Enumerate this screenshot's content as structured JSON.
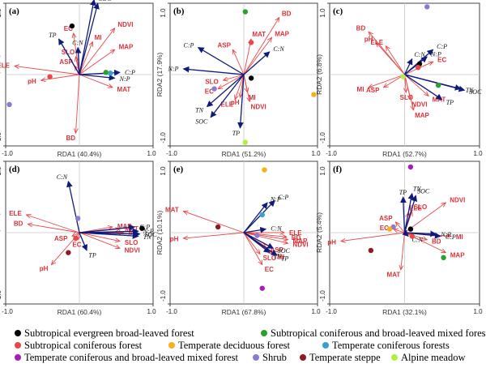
{
  "colors": {
    "env_arrow": "#e8484a",
    "env_text": "#d9323a",
    "sp_arrow": "#101a7a",
    "panel_border": "#444444",
    "axis_label": "#333333"
  },
  "legend": [
    {
      "label": "Subtropical  evergreen  broad-leaved  forest",
      "color": "#000000"
    },
    {
      "label": "Subtropical coniferous and broad-leaved mixed forest",
      "color": "#2ca02c"
    },
    {
      "label": "Subtropical coniferous forest",
      "color": "#e8484a"
    },
    {
      "label": "Temperate deciduous forest",
      "color": "#f5b01c"
    },
    {
      "label": "Temperate coniferous forests",
      "color": "#3a9fcf"
    },
    {
      "label": "Temperate coniferous and broad-leaved mixed forest",
      "color": "#a41fb5"
    },
    {
      "label": "Shrub",
      "color": "#8a7bd0"
    },
    {
      "label": "Temperate steppe",
      "color": "#8b1a25"
    },
    {
      "label": "Alpine meadow",
      "color": "#b2ef3f"
    }
  ],
  "chart_data": [
    {
      "type": "scatter",
      "panel": "(a)",
      "xlabel": "RDA1 (40.4%)",
      "ylabel": "RDA2 (1.9%)",
      "xlim": [
        -1.0,
        1.0
      ],
      "ylim": [
        -1.0,
        1.0
      ],
      "x_ticks": [
        "-1.0",
        "1.0"
      ],
      "y_ticks": [
        "-1.0",
        "1.0"
      ],
      "env_vectors": [
        {
          "label": "EC",
          "x": -0.08,
          "y": 0.58
        },
        {
          "label": "SLO",
          "x": -0.05,
          "y": 0.25
        },
        {
          "label": "ASP",
          "x": -0.06,
          "y": 0.12
        },
        {
          "label": "MI",
          "x": 0.18,
          "y": 0.46
        },
        {
          "label": "NDVI",
          "x": 0.48,
          "y": 0.65
        },
        {
          "label": "MAP",
          "x": 0.48,
          "y": 0.35
        },
        {
          "label": "ELE",
          "x": -0.88,
          "y": 0.12
        },
        {
          "label": "pH",
          "x": -0.52,
          "y": -0.08
        },
        {
          "label": "MAT",
          "x": 0.45,
          "y": -0.18
        },
        {
          "label": "BD",
          "x": -0.05,
          "y": -0.82
        }
      ],
      "species_vectors": [
        {
          "label": "TP",
          "x": -0.28,
          "y": 0.5
        },
        {
          "label": "C:N",
          "x": -0.02,
          "y": 0.38
        },
        {
          "label": "N:P",
          "x": 0.48,
          "y": -0.05
        },
        {
          "label": "C:P",
          "x": 0.55,
          "y": 0.03
        },
        {
          "label": "TN",
          "x": 0.2,
          "y": 1.05
        },
        {
          "label": "SOC",
          "x": 0.25,
          "y": 1.0
        }
      ],
      "sites": [
        {
          "group": "Subtropical  evergreen  broad-leaved  forest",
          "x": -0.1,
          "y": 0.68
        },
        {
          "group": "Subtropical coniferous forest",
          "x": -0.4,
          "y": -0.03
        },
        {
          "group": "Subtropical coniferous and broad-leaved mixed forest",
          "x": 0.36,
          "y": 0.03
        },
        {
          "group": "Temperate coniferous forests",
          "x": 0.42,
          "y": 0.02
        },
        {
          "group": "Shrub",
          "x": -0.95,
          "y": -0.42
        }
      ]
    },
    {
      "type": "scatter",
      "panel": "(b)",
      "xlabel": "RDA1 (51.2%)",
      "ylabel": "RDA2 (17.9%)",
      "xlim": [
        -1.0,
        1.0
      ],
      "ylim": [
        -1.0,
        1.0
      ],
      "x_ticks": [
        "-1.0",
        "1.0"
      ],
      "y_ticks": [
        "-1.0",
        "1.0"
      ],
      "env_vectors": [
        {
          "label": "BD",
          "x": 0.48,
          "y": 0.8
        },
        {
          "label": "MAT",
          "x": 0.1,
          "y": 0.5
        },
        {
          "label": "ASP",
          "x": -0.15,
          "y": 0.35
        },
        {
          "label": "MAP",
          "x": 0.38,
          "y": 0.52
        },
        {
          "label": "SLO",
          "x": -0.28,
          "y": -0.08
        },
        {
          "label": "EC",
          "x": -0.35,
          "y": -0.2
        },
        {
          "label": "ELE",
          "x": -0.12,
          "y": -0.35
        },
        {
          "label": "pH",
          "x": -0.05,
          "y": -0.32
        },
        {
          "label": "MI",
          "x": 0.05,
          "y": -0.25
        },
        {
          "label": "NDVI",
          "x": 0.08,
          "y": -0.38
        }
      ],
      "species_vectors": [
        {
          "label": "C:P",
          "x": -0.62,
          "y": 0.38
        },
        {
          "label": "N:P",
          "x": -0.82,
          "y": 0.08
        },
        {
          "label": "C:N",
          "x": 0.35,
          "y": 0.32
        },
        {
          "label": "TN",
          "x": -0.5,
          "y": -0.45
        },
        {
          "label": "SOC",
          "x": -0.45,
          "y": -0.6
        },
        {
          "label": "TP",
          "x": -0.05,
          "y": -0.75
        }
      ],
      "sites": [
        {
          "group": "Subtropical coniferous and broad-leaved mixed forest",
          "x": 0.02,
          "y": 0.88
        },
        {
          "group": "Subtropical coniferous forest",
          "x": 0.1,
          "y": 0.45
        },
        {
          "group": "Subtropical  evergreen  broad-leaved  forest",
          "x": 0.1,
          "y": -0.05
        },
        {
          "group": "Shrub",
          "x": -0.4,
          "y": -0.2
        },
        {
          "group": "Temperate deciduous forest",
          "x": 0.95,
          "y": -0.28
        },
        {
          "group": "Alpine meadow",
          "x": 0.02,
          "y": -0.95
        }
      ]
    },
    {
      "type": "scatter",
      "panel": "(c)",
      "xlabel": "RDA1 (52.7%)",
      "ylabel": "RDA2 (6.8%)",
      "xlim": [
        -1.0,
        1.0
      ],
      "ylim": [
        -1.0,
        1.0
      ],
      "x_ticks": [
        "-1.0",
        "1.0"
      ],
      "y_ticks": [
        "-1.0",
        "1.0"
      ],
      "env_vectors": [
        {
          "label": "BD",
          "x": -0.48,
          "y": 0.6
        },
        {
          "label": "pH",
          "x": -0.38,
          "y": 0.45
        },
        {
          "label": "ELE",
          "x": -0.25,
          "y": 0.4
        },
        {
          "label": "EC",
          "x": 0.38,
          "y": 0.18
        },
        {
          "label": "MI",
          "x": -0.48,
          "y": -0.18
        },
        {
          "label": "ASP",
          "x": -0.28,
          "y": -0.18
        },
        {
          "label": "SLO",
          "x": 0.02,
          "y": -0.25
        },
        {
          "label": "NDVI",
          "x": 0.08,
          "y": -0.35
        },
        {
          "label": "MAP",
          "x": 0.12,
          "y": -0.5
        },
        {
          "label": "MAT",
          "x": 0.32,
          "y": -0.3
        }
      ],
      "species_vectors": [
        {
          "label": "C:N",
          "x": 0.1,
          "y": 0.22
        },
        {
          "label": "N:P",
          "x": 0.3,
          "y": 0.25
        },
        {
          "label": "C:P",
          "x": 0.38,
          "y": 0.35
        },
        {
          "label": "TP",
          "x": 0.5,
          "y": -0.35
        },
        {
          "label": "TN",
          "x": 0.75,
          "y": -0.2
        },
        {
          "label": "SOC",
          "x": 0.8,
          "y": -0.22
        }
      ],
      "sites": [
        {
          "group": "Shrub",
          "x": 0.3,
          "y": 0.95
        },
        {
          "group": "Subtropical  evergreen  broad-leaved  forest",
          "x": 0.2,
          "y": 0.15
        },
        {
          "group": "Subtropical coniferous forest",
          "x": 0.18,
          "y": 0.1
        },
        {
          "group": "Alpine meadow",
          "x": -0.02,
          "y": -0.03
        },
        {
          "group": "Subtropical coniferous and broad-leaved mixed forest",
          "x": 0.45,
          "y": -0.15
        }
      ]
    },
    {
      "type": "scatter",
      "panel": "(d)",
      "xlabel": "RDA1 (60.4%)",
      "ylabel": "RDA2 (9.1%)",
      "xlim": [
        -1.0,
        1.0
      ],
      "ylim": [
        -1.0,
        1.0
      ],
      "x_ticks": [
        "-1.0",
        "1.0"
      ],
      "y_ticks": [
        "-1.0",
        "1.0"
      ],
      "env_vectors": [
        {
          "label": "ELE",
          "x": -0.72,
          "y": 0.25
        },
        {
          "label": "BD",
          "x": -0.7,
          "y": 0.12
        },
        {
          "label": "ASP",
          "x": -0.1,
          "y": -0.05
        },
        {
          "label": "EC",
          "x": -0.02,
          "y": -0.1
        },
        {
          "label": "pH",
          "x": -0.38,
          "y": -0.45
        },
        {
          "label": "MAP",
          "x": 0.45,
          "y": 0.08
        },
        {
          "label": "MAT",
          "x": 0.55,
          "y": 0.05
        },
        {
          "label": "MI",
          "x": 0.6,
          "y": 0.0
        },
        {
          "label": "NDVI",
          "x": 0.55,
          "y": -0.22
        },
        {
          "label": "SLO",
          "x": 0.55,
          "y": -0.12
        }
      ],
      "species_vectors": [
        {
          "label": "C:N",
          "x": -0.15,
          "y": 0.72
        },
        {
          "label": "C:P",
          "x": 0.75,
          "y": 0.08
        },
        {
          "label": "N:P",
          "x": 0.8,
          "y": 0.02
        },
        {
          "label": "SOC",
          "x": 0.82,
          "y": -0.02
        },
        {
          "label": "TN",
          "x": 0.8,
          "y": -0.05
        },
        {
          "label": "TP",
          "x": 0.1,
          "y": -0.25
        }
      ],
      "sites": [
        {
          "group": "Shrub",
          "x": -0.02,
          "y": 0.2
        },
        {
          "group": "Subtropical  evergreen  broad-leaved  forest",
          "x": 0.85,
          "y": 0.06
        },
        {
          "group": "Subtropical coniferous forest",
          "x": -0.05,
          "y": -0.08
        },
        {
          "group": "Temperate steppe",
          "x": -0.15,
          "y": -0.28
        }
      ]
    },
    {
      "type": "scatter",
      "panel": "(e)",
      "xlabel": "RDA1 (67.8%)",
      "ylabel": "RDA2 (10.1%)",
      "xlim": [
        -1.0,
        1.0
      ],
      "ylim": [
        -1.0,
        1.0
      ],
      "x_ticks": [
        "-1.0",
        "1.0"
      ],
      "y_ticks": [
        "-1.0",
        "1.0"
      ],
      "env_vectors": [
        {
          "label": "MAT",
          "x": -0.82,
          "y": 0.3
        },
        {
          "label": "pH",
          "x": -0.82,
          "y": -0.08
        },
        {
          "label": "ASP",
          "x": 0.3,
          "y": -0.2
        },
        {
          "label": "SLO",
          "x": 0.22,
          "y": -0.3
        },
        {
          "label": "EC",
          "x": 0.25,
          "y": -0.45
        },
        {
          "label": "ELE",
          "x": 0.55,
          "y": 0.0
        },
        {
          "label": "BD",
          "x": 0.58,
          "y": -0.06
        },
        {
          "label": "MAP",
          "x": 0.6,
          "y": -0.1
        },
        {
          "label": "NDVI",
          "x": 0.6,
          "y": -0.15
        },
        {
          "label": "MI",
          "x": 0.4,
          "y": -0.3
        }
      ],
      "species_vectors": [
        {
          "label": "N:P",
          "x": 0.32,
          "y": 0.42
        },
        {
          "label": "C:P",
          "x": 0.42,
          "y": 0.45
        },
        {
          "label": "C:N",
          "x": 0.3,
          "y": 0.05
        },
        {
          "label": "SOC",
          "x": 0.4,
          "y": -0.22
        },
        {
          "label": "TN",
          "x": 0.35,
          "y": -0.28
        },
        {
          "label": "TP",
          "x": 0.45,
          "y": -0.32
        }
      ],
      "sites": [
        {
          "group": "Temperate deciduous forest",
          "x": 0.28,
          "y": 0.88
        },
        {
          "group": "Temperate coniferous forests",
          "x": 0.25,
          "y": 0.25
        },
        {
          "group": "Shrub",
          "x": 0.18,
          "y": -0.04
        },
        {
          "group": "Temperate steppe",
          "x": -0.35,
          "y": 0.08
        },
        {
          "group": "Temperate coniferous and broad-leaved mixed forest",
          "x": 0.25,
          "y": -0.78
        }
      ]
    },
    {
      "type": "scatter",
      "panel": "(f)",
      "xlabel": "RDA1 (32.1%)",
      "ylabel": "RDA2 (5.4%)",
      "xlim": [
        -1.0,
        1.0
      ],
      "ylim": [
        -1.0,
        1.0
      ],
      "x_ticks": [
        "-1.0",
        "1.0"
      ],
      "y_ticks": [
        "-1.0",
        "1.0"
      ],
      "env_vectors": [
        {
          "label": "ELE",
          "x": 0.05,
          "y": 0.28
        },
        {
          "label": "SLO",
          "x": 0.1,
          "y": 0.3
        },
        {
          "label": "NDVI",
          "x": 0.55,
          "y": 0.42
        },
        {
          "label": "ASP",
          "x": -0.12,
          "y": 0.15
        },
        {
          "label": "EC",
          "x": -0.15,
          "y": 0.05
        },
        {
          "label": "pH",
          "x": -0.85,
          "y": -0.12
        },
        {
          "label": "MI",
          "x": 0.62,
          "y": -0.05
        },
        {
          "label": "MAP",
          "x": 0.55,
          "y": -0.28
        },
        {
          "label": "MAT",
          "x": -0.05,
          "y": -0.52
        },
        {
          "label": "BD",
          "x": 0.3,
          "y": -0.1
        }
      ],
      "species_vectors": [
        {
          "label": "TP",
          "x": -0.02,
          "y": 0.5
        },
        {
          "label": "TN",
          "x": 0.1,
          "y": 0.55
        },
        {
          "label": "SOC",
          "x": 0.15,
          "y": 0.52
        },
        {
          "label": "C:N",
          "x": 0.05,
          "y": -0.05
        },
        {
          "label": "N:P",
          "x": 0.42,
          "y": -0.02
        },
        {
          "label": "C:P",
          "x": 0.48,
          "y": -0.05
        }
      ],
      "sites": [
        {
          "group": "Temperate coniferous and broad-leaved mixed forest",
          "x": 0.08,
          "y": 0.92
        },
        {
          "group": "Shrub",
          "x": -0.15,
          "y": 0.08
        },
        {
          "group": "Temperate deciduous forest",
          "x": -0.2,
          "y": 0.05
        },
        {
          "group": "Subtropical  evergreen  broad-leaved  forest",
          "x": 0.08,
          "y": 0.05
        },
        {
          "group": "Subtropical coniferous forest",
          "x": 0.1,
          "y": -0.05
        },
        {
          "group": "Temperate steppe",
          "x": -0.45,
          "y": -0.25
        },
        {
          "group": "Subtropical coniferous and broad-leaved mixed forest",
          "x": 0.52,
          "y": -0.35
        }
      ]
    }
  ]
}
